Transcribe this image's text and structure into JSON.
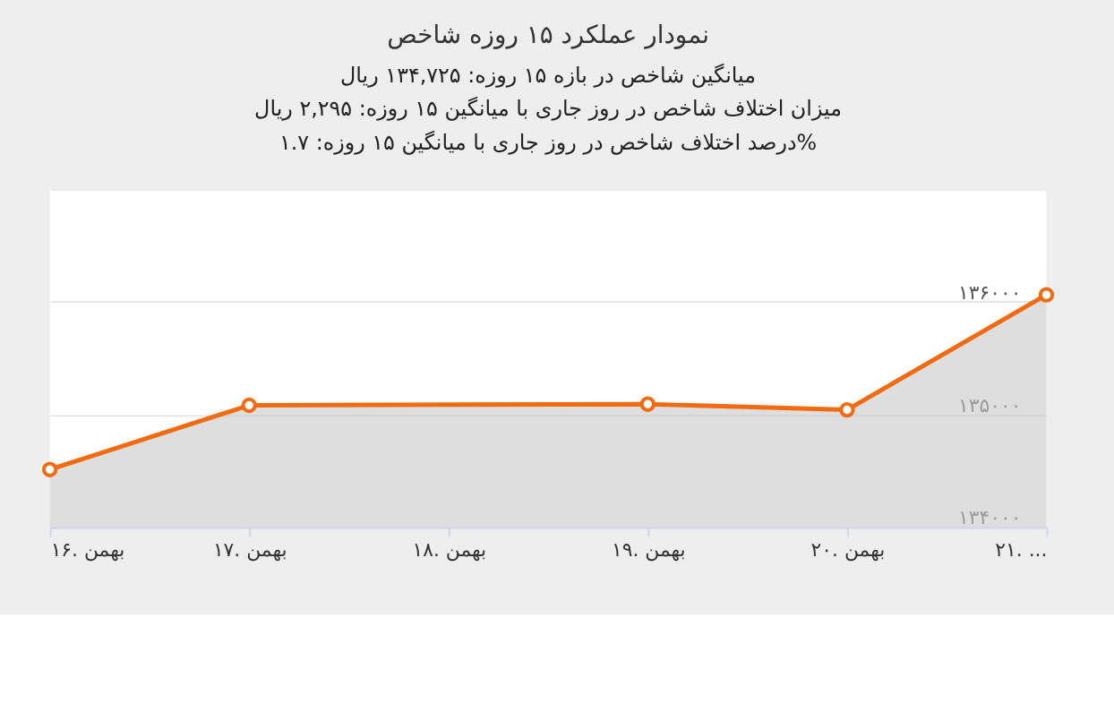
{
  "chart_data": {
    "type": "area",
    "title": "نمودار عملکرد ۱۵ روزه شاخص",
    "annotations": [
      "میانگین شاخص در بازه ۱۵ روزه: ۱۳۴,۷۲۵ ریال",
      "میزان اختلاف شاخص در روز جاری با میانگین ۱۵ روزه: ۲,۲۹۵ ریال",
      "درصد اختلاف شاخص در روز جاری با میانگین ۱۵ روزه: ۱.۷%"
    ],
    "x": [
      16,
      17,
      19,
      20,
      21
    ],
    "series": [
      {
        "color": "#f26b10",
        "values": [
          134510,
          135080,
          135090,
          135040,
          136060
        ]
      }
    ],
    "xlim": [
      16,
      21
    ],
    "xticks": [
      {
        "value": 16,
        "label": "۱۶. بهمن"
      },
      {
        "value": 17,
        "label": "۱۷. بهمن"
      },
      {
        "value": 18,
        "label": "۱۸. بهمن"
      },
      {
        "value": 19,
        "label": "۱۹. بهمن"
      },
      {
        "value": 20,
        "label": "۲۰. بهمن"
      },
      {
        "value": 21,
        "label": "۲۱. ..."
      }
    ],
    "ylim": [
      134000,
      137000
    ],
    "yticks": [
      {
        "value": 134000,
        "label": "۱۳۴۰۰۰"
      },
      {
        "value": 135000,
        "label": "۱۳۵۰۰۰"
      },
      {
        "value": 136000,
        "label": "۱۳۶۰۰۰"
      },
      {
        "value": 137000,
        "label": null
      }
    ],
    "grid": "y",
    "marker": "circle"
  }
}
